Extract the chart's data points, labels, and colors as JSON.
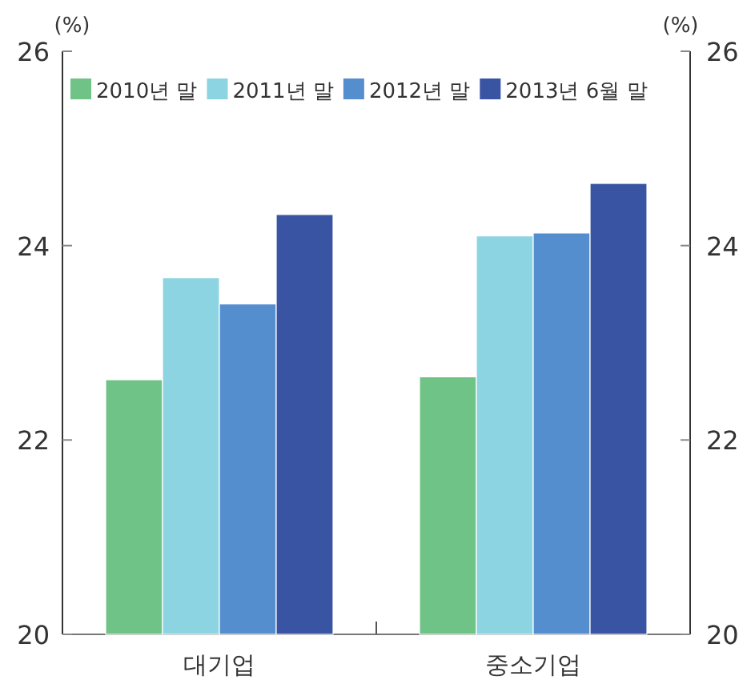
{
  "chart_data": {
    "type": "bar",
    "ylabel": "(%)",
    "y2label": "(%)",
    "categories": [
      "대기업",
      "중소기업"
    ],
    "series": [
      {
        "name": "2010년 말",
        "color": "#70c386",
        "values": [
          22.62,
          22.65
        ]
      },
      {
        "name": "2011년 말",
        "color": "#8cd4e1",
        "values": [
          23.67,
          24.1
        ]
      },
      {
        "name": "2012년 말",
        "color": "#558ece",
        "values": [
          23.4,
          24.13
        ]
      },
      {
        "name": "2013년 6월 말",
        "color": "#3a54a4",
        "values": [
          24.32,
          24.64
        ]
      }
    ],
    "ylim": [
      20,
      26
    ],
    "yticks": [
      20,
      22,
      24,
      26
    ],
    "y2lim": [
      20,
      26
    ],
    "y2ticks": [
      20,
      22,
      24,
      26
    ],
    "legend": "top"
  }
}
